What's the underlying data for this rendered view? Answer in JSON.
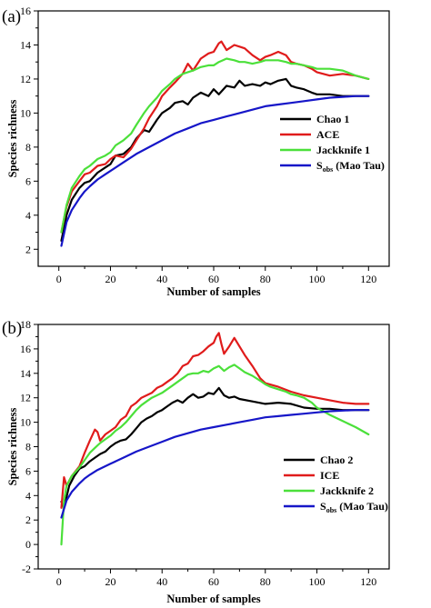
{
  "chart_data": [
    {
      "panel_label": "(a)",
      "type": "line",
      "xlabel": "Number of samples",
      "ylabel": "Species richness",
      "xlim": [
        -8,
        128
      ],
      "ylim": [
        1,
        16
      ],
      "xticks": [
        "0",
        "20",
        "40",
        "60",
        "80",
        "100",
        "120"
      ],
      "yticks": [
        "2",
        "4",
        "6",
        "8",
        "10",
        "12",
        "14",
        "16"
      ],
      "legend_position": "right-middle",
      "series": [
        {
          "name": "Chao 1",
          "legend_main": "Chao 1",
          "legend_sub": "",
          "legend_tail": "",
          "color": "#000000",
          "x": [
            1,
            3,
            5,
            8,
            10,
            12,
            15,
            18,
            20,
            22,
            25,
            28,
            30,
            33,
            35,
            38,
            40,
            43,
            45,
            48,
            50,
            52,
            55,
            58,
            60,
            62,
            65,
            68,
            70,
            72,
            75,
            78,
            80,
            82,
            85,
            88,
            90,
            92,
            95,
            98,
            100,
            105,
            110,
            115,
            120
          ],
          "y": [
            2.5,
            4.0,
            4.9,
            5.6,
            5.9,
            6.0,
            6.5,
            6.8,
            7.0,
            7.5,
            7.6,
            8.0,
            8.5,
            9.0,
            8.9,
            9.6,
            10.0,
            10.3,
            10.6,
            10.7,
            10.5,
            10.9,
            11.2,
            11.0,
            11.4,
            11.1,
            11.6,
            11.5,
            11.9,
            11.6,
            11.7,
            11.6,
            11.8,
            11.7,
            11.9,
            12.0,
            11.6,
            11.5,
            11.4,
            11.2,
            11.1,
            11.1,
            11.0,
            11.0,
            11.0
          ]
        },
        {
          "name": "ACE",
          "legend_main": "ACE",
          "legend_sub": "",
          "legend_tail": "",
          "color": "#e01b1b",
          "x": [
            1,
            3,
            5,
            8,
            10,
            12,
            15,
            18,
            20,
            22,
            25,
            28,
            30,
            33,
            35,
            38,
            40,
            43,
            45,
            48,
            50,
            52,
            55,
            58,
            60,
            62,
            63,
            65,
            68,
            70,
            72,
            75,
            78,
            80,
            82,
            85,
            88,
            90,
            92,
            95,
            98,
            100,
            105,
            110,
            115,
            120
          ],
          "y": [
            3.0,
            4.5,
            5.4,
            6.0,
            6.4,
            6.5,
            6.9,
            7.0,
            7.3,
            7.5,
            7.4,
            7.9,
            8.4,
            9.1,
            9.7,
            10.4,
            11.0,
            11.5,
            11.8,
            12.3,
            12.9,
            12.5,
            13.2,
            13.5,
            13.6,
            14.1,
            14.2,
            13.7,
            14.0,
            13.9,
            13.8,
            13.4,
            13.1,
            13.3,
            13.4,
            13.6,
            13.4,
            13.0,
            12.9,
            12.8,
            12.6,
            12.4,
            12.2,
            12.3,
            12.2,
            12.0
          ]
        },
        {
          "name": "Jackknife 1",
          "legend_main": "Jackknife 1",
          "legend_sub": "",
          "legend_tail": "",
          "color": "#4be03a",
          "x": [
            1,
            3,
            5,
            8,
            10,
            12,
            15,
            18,
            20,
            22,
            25,
            28,
            30,
            33,
            35,
            38,
            40,
            43,
            45,
            48,
            50,
            52,
            55,
            58,
            60,
            62,
            65,
            68,
            70,
            72,
            75,
            78,
            80,
            82,
            85,
            88,
            90,
            92,
            95,
            98,
            100,
            105,
            110,
            115,
            120
          ],
          "y": [
            3.0,
            4.6,
            5.6,
            6.3,
            6.7,
            6.9,
            7.3,
            7.5,
            7.7,
            8.1,
            8.4,
            8.8,
            9.3,
            10.0,
            10.4,
            10.9,
            11.3,
            11.7,
            12.0,
            12.3,
            12.4,
            12.5,
            12.7,
            12.8,
            12.8,
            13.0,
            13.2,
            13.1,
            13.0,
            13.0,
            12.9,
            13.0,
            13.1,
            13.1,
            13.1,
            13.0,
            12.9,
            12.9,
            12.8,
            12.7,
            12.6,
            12.6,
            12.5,
            12.2,
            12.0
          ]
        },
        {
          "name": "Sobs (Mao Tau)",
          "legend_main": "S",
          "legend_sub": "obs",
          "legend_tail": " (Mao Tau)",
          "color": "#1616c8",
          "x": [
            1,
            3,
            5,
            8,
            10,
            12,
            15,
            18,
            20,
            25,
            30,
            35,
            40,
            45,
            50,
            55,
            60,
            65,
            70,
            75,
            80,
            85,
            90,
            95,
            100,
            105,
            110,
            115,
            120
          ],
          "y": [
            2.2,
            3.6,
            4.3,
            5.0,
            5.4,
            5.7,
            6.1,
            6.4,
            6.6,
            7.1,
            7.6,
            8.0,
            8.4,
            8.8,
            9.1,
            9.4,
            9.6,
            9.8,
            10.0,
            10.2,
            10.4,
            10.5,
            10.6,
            10.7,
            10.8,
            10.9,
            10.95,
            11.0,
            11.0
          ]
        }
      ]
    },
    {
      "panel_label": "(b)",
      "type": "line",
      "xlabel": "Number of samples",
      "ylabel": "Species richness",
      "xlim": [
        -8,
        128
      ],
      "ylim": [
        -2,
        18
      ],
      "xticks": [
        "0",
        "20",
        "40",
        "60",
        "80",
        "100",
        "120"
      ],
      "yticks": [
        "-2",
        "0",
        "2",
        "4",
        "6",
        "8",
        "10",
        "12",
        "14",
        "16",
        "18"
      ],
      "legend_position": "lower-right",
      "series": [
        {
          "name": "Chao 2",
          "legend_main": "Chao 2",
          "legend_sub": "",
          "legend_tail": "",
          "color": "#000000",
          "x": [
            1,
            2,
            4,
            6,
            8,
            10,
            12,
            14,
            16,
            18,
            20,
            22,
            24,
            26,
            28,
            30,
            32,
            34,
            36,
            38,
            40,
            42,
            44,
            46,
            48,
            50,
            52,
            54,
            56,
            58,
            60,
            62,
            64,
            66,
            68,
            70,
            75,
            80,
            85,
            90,
            95,
            100,
            105,
            110,
            115,
            120
          ],
          "y": [
            3.5,
            3.0,
            4.8,
            5.6,
            6.2,
            6.4,
            6.8,
            7.1,
            7.4,
            7.6,
            8.0,
            8.3,
            8.5,
            8.6,
            9.0,
            9.5,
            10.0,
            10.3,
            10.5,
            10.8,
            11.0,
            11.3,
            11.6,
            11.8,
            11.6,
            12.0,
            12.3,
            12.0,
            12.1,
            12.4,
            12.3,
            12.8,
            12.2,
            12.0,
            12.1,
            11.9,
            11.7,
            11.5,
            11.6,
            11.5,
            11.2,
            11.1,
            11.1,
            11.0,
            11.0,
            11.0
          ]
        },
        {
          "name": "ICE",
          "legend_main": "ICE",
          "legend_sub": "",
          "legend_tail": "",
          "color": "#e01b1b",
          "x": [
            1,
            2,
            3,
            5,
            8,
            10,
            12,
            14,
            15,
            16,
            18,
            20,
            22,
            24,
            26,
            28,
            30,
            32,
            34,
            36,
            38,
            40,
            42,
            44,
            46,
            48,
            50,
            52,
            54,
            56,
            58,
            60,
            61,
            62,
            63,
            64,
            66,
            68,
            70,
            72,
            75,
            78,
            80,
            85,
            90,
            95,
            100,
            105,
            110,
            115,
            120
          ],
          "y": [
            3.0,
            5.5,
            4.8,
            5.6,
            6.4,
            7.5,
            8.5,
            9.4,
            9.2,
            8.5,
            9.0,
            9.3,
            9.6,
            10.2,
            10.5,
            11.3,
            11.6,
            12.0,
            12.2,
            12.4,
            12.8,
            13.0,
            13.3,
            13.6,
            14.0,
            14.6,
            14.8,
            15.4,
            15.5,
            15.8,
            16.2,
            16.5,
            17.0,
            17.3,
            16.4,
            15.6,
            16.2,
            16.9,
            16.2,
            15.5,
            14.6,
            13.6,
            13.2,
            12.9,
            12.5,
            12.2,
            12.0,
            11.8,
            11.6,
            11.5,
            11.5
          ]
        },
        {
          "name": "Jackknife 2",
          "legend_main": "Jackknife 2",
          "legend_sub": "",
          "legend_tail": "",
          "color": "#4be03a",
          "x": [
            1,
            2,
            3,
            5,
            8,
            10,
            12,
            14,
            16,
            18,
            20,
            22,
            24,
            26,
            28,
            30,
            32,
            34,
            36,
            38,
            40,
            42,
            44,
            46,
            48,
            50,
            52,
            54,
            56,
            58,
            60,
            62,
            64,
            66,
            68,
            70,
            72,
            75,
            78,
            80,
            82,
            85,
            88,
            90,
            92,
            95,
            98,
            100,
            105,
            110,
            115,
            120
          ],
          "y": [
            0.0,
            3.6,
            4.8,
            5.6,
            6.3,
            6.9,
            7.5,
            7.9,
            8.3,
            8.6,
            8.9,
            9.3,
            9.6,
            10.0,
            10.5,
            11.0,
            11.4,
            11.7,
            12.0,
            12.2,
            12.4,
            12.7,
            13.0,
            13.3,
            13.6,
            13.9,
            14.0,
            14.0,
            14.2,
            14.1,
            14.4,
            14.6,
            14.2,
            14.5,
            14.7,
            14.4,
            14.1,
            13.8,
            13.4,
            13.1,
            12.9,
            12.7,
            12.5,
            12.3,
            12.2,
            12.0,
            11.6,
            11.2,
            10.6,
            10.1,
            9.6,
            9.0
          ]
        },
        {
          "name": "Sobs (Mao Tau)",
          "legend_main": "S",
          "legend_sub": "obs",
          "legend_tail": " (Mao Tau)",
          "color": "#1616c8",
          "x": [
            1,
            3,
            5,
            8,
            10,
            12,
            15,
            18,
            20,
            25,
            30,
            35,
            40,
            45,
            50,
            55,
            60,
            65,
            70,
            75,
            80,
            85,
            90,
            95,
            100,
            105,
            110,
            115,
            120
          ],
          "y": [
            2.2,
            3.6,
            4.3,
            5.0,
            5.4,
            5.7,
            6.1,
            6.4,
            6.6,
            7.1,
            7.6,
            8.0,
            8.4,
            8.8,
            9.1,
            9.4,
            9.6,
            9.8,
            10.0,
            10.2,
            10.4,
            10.5,
            10.6,
            10.7,
            10.8,
            10.9,
            10.95,
            11.0,
            11.0
          ]
        }
      ]
    }
  ]
}
